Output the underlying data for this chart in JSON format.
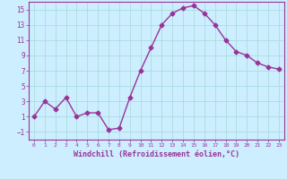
{
  "x": [
    0,
    1,
    2,
    3,
    4,
    5,
    6,
    7,
    8,
    9,
    10,
    11,
    12,
    13,
    14,
    15,
    16,
    17,
    18,
    19,
    20,
    21,
    22,
    23
  ],
  "y": [
    1,
    3,
    2,
    3.5,
    1,
    1.5,
    1.5,
    -0.7,
    -0.5,
    3.5,
    7,
    10,
    13,
    14.5,
    15.2,
    15.5,
    14.5,
    13,
    11,
    9.5,
    9,
    8,
    7.5,
    7.2
  ],
  "line_color": "#993399",
  "marker": "D",
  "marker_size": 2.5,
  "background_color": "#cceeff",
  "grid_color": "#aadddd",
  "xlabel": "Windchill (Refroidissement éolien,°C)",
  "xlabel_color": "#993399",
  "tick_color": "#993399",
  "label_color": "#993399",
  "ylim": [
    -2,
    16
  ],
  "xlim": [
    -0.5,
    23.5
  ],
  "yticks": [
    -1,
    1,
    3,
    5,
    7,
    9,
    11,
    13,
    15
  ],
  "xticks": [
    0,
    1,
    2,
    3,
    4,
    5,
    6,
    7,
    8,
    9,
    10,
    11,
    12,
    13,
    14,
    15,
    16,
    17,
    18,
    19,
    20,
    21,
    22,
    23
  ]
}
